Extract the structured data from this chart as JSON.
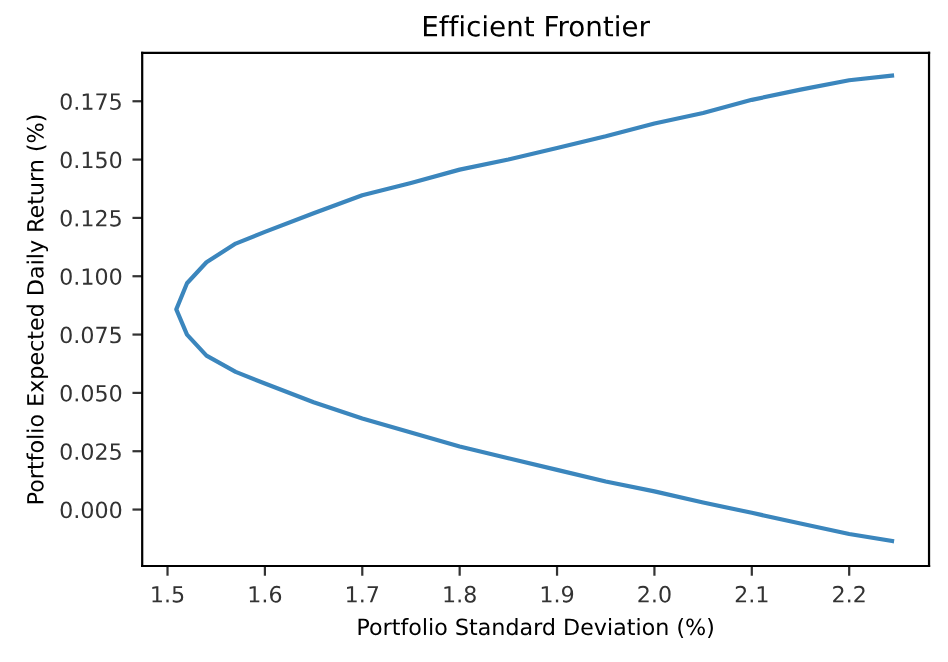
{
  "chart_data": {
    "type": "line",
    "title": "Efficient Frontier",
    "xlabel": "Portfolio Standard Deviation (%)",
    "ylabel": "Portfolio Expected Daily Return (%)",
    "series": [
      {
        "color": "#3b86bd",
        "x": [
          2.244,
          2.2,
          2.15,
          2.1,
          2.05,
          2.0,
          1.95,
          1.9,
          1.85,
          1.8,
          1.75,
          1.7,
          1.65,
          1.6,
          1.57,
          1.54,
          1.52,
          1.509,
          1.52,
          1.54,
          1.57,
          1.6,
          1.65,
          1.7,
          1.75,
          1.8,
          1.85,
          1.9,
          1.95,
          2.0,
          2.05,
          2.1,
          2.15,
          2.2,
          2.244
        ],
        "values": [
          -0.0135,
          -0.0105,
          -0.006,
          -0.0014,
          0.003,
          0.0078,
          0.012,
          0.017,
          0.022,
          0.027,
          0.033,
          0.039,
          0.046,
          0.054,
          0.059,
          0.066,
          0.075,
          0.0858,
          0.097,
          0.106,
          0.114,
          0.119,
          0.127,
          0.1347,
          0.14,
          0.1457,
          0.15,
          0.155,
          0.16,
          0.1655,
          0.17,
          0.1756,
          0.18,
          0.184,
          0.186
        ]
      }
    ],
    "xlim": [
      1.474,
      2.282
    ],
    "ylim": [
      -0.0242,
      0.1957
    ],
    "xticks": [
      {
        "value": 1.5,
        "label": "1.5"
      },
      {
        "value": 1.6,
        "label": "1.6"
      },
      {
        "value": 1.7,
        "label": "1.7"
      },
      {
        "value": 1.8,
        "label": "1.8"
      },
      {
        "value": 1.9,
        "label": "1.9"
      },
      {
        "value": 2.0,
        "label": "2.0"
      },
      {
        "value": 2.1,
        "label": "2.1"
      },
      {
        "value": 2.2,
        "label": "2.2"
      }
    ],
    "yticks": [
      {
        "value": 0,
        "label": "0.000"
      },
      {
        "value": 0.025,
        "label": "0.025"
      },
      {
        "value": 0.05,
        "label": "0.050"
      },
      {
        "value": 0.075,
        "label": "0.075"
      },
      {
        "value": 0.1,
        "label": "0.100"
      },
      {
        "value": 0.125,
        "label": "0.125"
      },
      {
        "value": 0.15,
        "label": "0.150"
      },
      {
        "value": 0.175,
        "label": "0.175"
      }
    ],
    "grid": false,
    "legend": false,
    "marker": "none",
    "line_style": "solid"
  }
}
